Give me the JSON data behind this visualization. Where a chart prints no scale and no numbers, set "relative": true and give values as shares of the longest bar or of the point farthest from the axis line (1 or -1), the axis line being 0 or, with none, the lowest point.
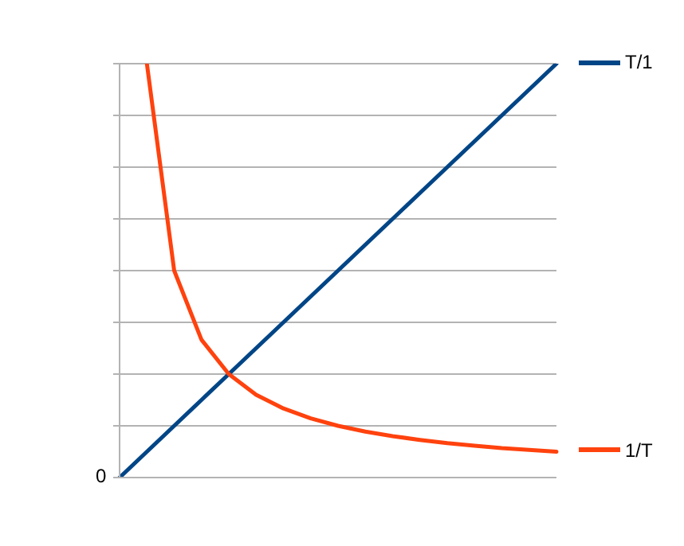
{
  "chart_data": {
    "type": "line",
    "relative": true,
    "categories": [
      null,
      null,
      null,
      null,
      null,
      null,
      null,
      null,
      null,
      null,
      null,
      null,
      null,
      null,
      null,
      null,
      null
    ],
    "series": [
      {
        "name": "T/1",
        "color": "#004586",
        "values": [
          0,
          0.0625,
          0.125,
          0.1875,
          0.25,
          0.3125,
          0.375,
          0.4375,
          0.5,
          0.5625,
          0.625,
          0.6875,
          0.75,
          0.8125,
          0.875,
          0.9375,
          1
        ]
      },
      {
        "name": "1/T",
        "color": "#ff420e",
        "values": [
          null,
          1,
          0.5,
          0.333,
          0.25,
          0.2,
          0.167,
          0.143,
          0.125,
          0.111,
          0.1,
          0.091,
          0.083,
          0.077,
          0.071,
          0.067,
          0.0625
        ]
      }
    ],
    "annotations": [
      "0"
    ],
    "grid": "y",
    "legend": "right",
    "marker": "none",
    "line_style": "solid",
    "tick_labels": false
  }
}
